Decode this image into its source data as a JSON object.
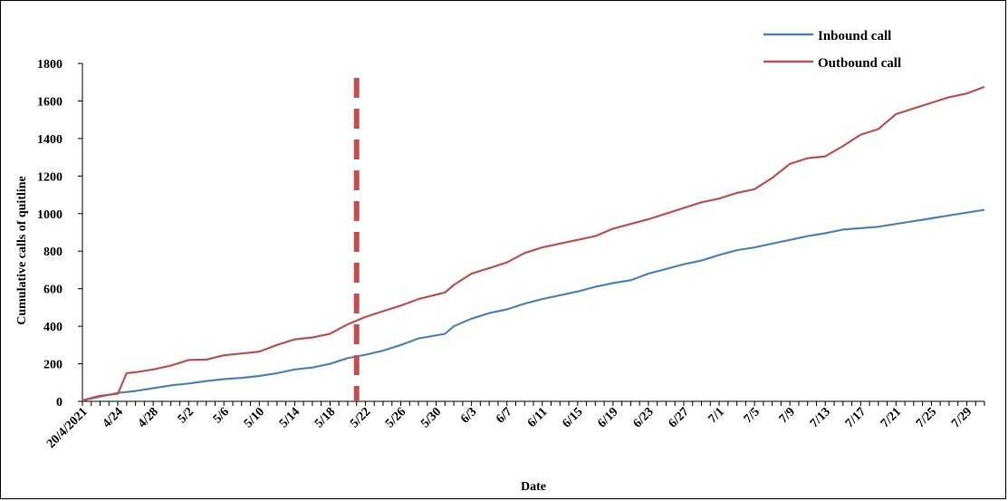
{
  "chart_data": {
    "type": "line",
    "title": "",
    "xlabel": "Date",
    "ylabel": "Cumulative calls of quitline",
    "ylim": [
      0,
      1800
    ],
    "yticks": [
      0,
      200,
      400,
      600,
      800,
      1000,
      1200,
      1400,
      1600,
      1800
    ],
    "grid": false,
    "legend_position": "top-right",
    "x_start_date": "2021-04-20",
    "x_end_date": "2021-07-31",
    "xtick_labels": [
      "20/4/2021",
      "4/24",
      "4/28",
      "5/2",
      "5/6",
      "5/10",
      "5/14",
      "5/18",
      "5/22",
      "5/26",
      "5/30",
      "6/3",
      "6/7",
      "6/11",
      "6/15",
      "6/19",
      "6/23",
      "6/27",
      "7/1",
      "7/5",
      "7/9",
      "7/13",
      "7/17",
      "7/21",
      "7/25",
      "7/29"
    ],
    "vertical_marker": {
      "date": "5/21",
      "color": "#c0504d",
      "style": "dashed"
    },
    "series": [
      {
        "name": "Inbound call",
        "color": "#4f81bd",
        "points": [
          [
            "4/20",
            5
          ],
          [
            "4/22",
            25
          ],
          [
            "4/24",
            45
          ],
          [
            "4/26",
            55
          ],
          [
            "4/28",
            70
          ],
          [
            "4/30",
            85
          ],
          [
            "5/2",
            95
          ],
          [
            "5/4",
            108
          ],
          [
            "5/6",
            118
          ],
          [
            "5/8",
            125
          ],
          [
            "5/10",
            135
          ],
          [
            "5/12",
            150
          ],
          [
            "5/14",
            170
          ],
          [
            "5/16",
            180
          ],
          [
            "5/18",
            200
          ],
          [
            "5/20",
            230
          ],
          [
            "5/22",
            248
          ],
          [
            "5/24",
            270
          ],
          [
            "5/26",
            300
          ],
          [
            "5/28",
            335
          ],
          [
            "5/31",
            360
          ],
          [
            "6/1",
            400
          ],
          [
            "6/3",
            440
          ],
          [
            "6/5",
            470
          ],
          [
            "6/7",
            490
          ],
          [
            "6/9",
            520
          ],
          [
            "6/11",
            545
          ],
          [
            "6/13",
            565
          ],
          [
            "6/15",
            585
          ],
          [
            "6/17",
            610
          ],
          [
            "6/19",
            630
          ],
          [
            "6/21",
            645
          ],
          [
            "6/23",
            680
          ],
          [
            "6/25",
            705
          ],
          [
            "6/27",
            730
          ],
          [
            "6/29",
            750
          ],
          [
            "7/1",
            780
          ],
          [
            "7/3",
            805
          ],
          [
            "7/5",
            820
          ],
          [
            "7/7",
            840
          ],
          [
            "7/9",
            860
          ],
          [
            "7/11",
            880
          ],
          [
            "7/13",
            895
          ],
          [
            "7/15",
            915
          ],
          [
            "7/17",
            922
          ],
          [
            "7/19",
            930
          ],
          [
            "7/21",
            945
          ],
          [
            "7/23",
            960
          ],
          [
            "7/25",
            975
          ],
          [
            "7/27",
            990
          ],
          [
            "7/29",
            1005
          ],
          [
            "7/31",
            1020
          ]
        ]
      },
      {
        "name": "Outbound call",
        "color": "#c0504d",
        "points": [
          [
            "4/20",
            5
          ],
          [
            "4/22",
            30
          ],
          [
            "4/24",
            40
          ],
          [
            "4/25",
            150
          ],
          [
            "4/26",
            155
          ],
          [
            "4/28",
            170
          ],
          [
            "4/30",
            190
          ],
          [
            "5/2",
            220
          ],
          [
            "5/4",
            222
          ],
          [
            "5/6",
            245
          ],
          [
            "5/8",
            255
          ],
          [
            "5/10",
            265
          ],
          [
            "5/12",
            300
          ],
          [
            "5/14",
            330
          ],
          [
            "5/16",
            340
          ],
          [
            "5/18",
            360
          ],
          [
            "5/20",
            410
          ],
          [
            "5/22",
            450
          ],
          [
            "5/24",
            480
          ],
          [
            "5/26",
            510
          ],
          [
            "5/28",
            545
          ],
          [
            "5/31",
            580
          ],
          [
            "6/1",
            620
          ],
          [
            "6/3",
            680
          ],
          [
            "6/5",
            710
          ],
          [
            "6/7",
            740
          ],
          [
            "6/9",
            790
          ],
          [
            "6/11",
            820
          ],
          [
            "6/13",
            840
          ],
          [
            "6/15",
            860
          ],
          [
            "6/17",
            880
          ],
          [
            "6/19",
            920
          ],
          [
            "6/21",
            945
          ],
          [
            "6/23",
            970
          ],
          [
            "6/25",
            1000
          ],
          [
            "6/27",
            1030
          ],
          [
            "6/29",
            1060
          ],
          [
            "7/1",
            1080
          ],
          [
            "7/3",
            1110
          ],
          [
            "7/5",
            1130
          ],
          [
            "7/7",
            1190
          ],
          [
            "7/9",
            1265
          ],
          [
            "7/11",
            1295
          ],
          [
            "7/13",
            1305
          ],
          [
            "7/15",
            1360
          ],
          [
            "7/17",
            1420
          ],
          [
            "7/19",
            1450
          ],
          [
            "7/21",
            1530
          ],
          [
            "7/23",
            1560
          ],
          [
            "7/25",
            1590
          ],
          [
            "7/27",
            1620
          ],
          [
            "7/29",
            1640
          ],
          [
            "7/31",
            1675
          ]
        ]
      }
    ]
  }
}
